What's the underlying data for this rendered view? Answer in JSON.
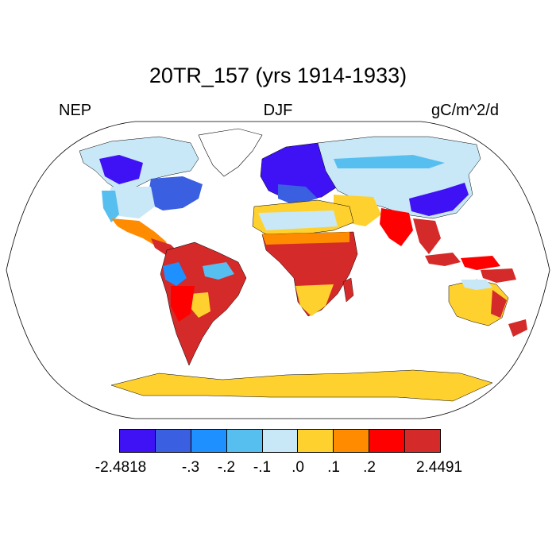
{
  "title": "20TR_157 (yrs 1914-1933)",
  "left_label": "NEP",
  "center_label": "DJF",
  "units": "gC/m^2/d",
  "colorbar": {
    "colors": [
      "#3e12f5",
      "#3a5fe0",
      "#1e90ff",
      "#57bff0",
      "#c8e8f7",
      "#ffd12e",
      "#ff8c00",
      "#ff0000",
      "#d42a2a"
    ],
    "labels": [
      "-2.4818",
      "-.3",
      "-.2",
      "-.1",
      ".0",
      ".1",
      ".2",
      "2.4491"
    ]
  }
}
